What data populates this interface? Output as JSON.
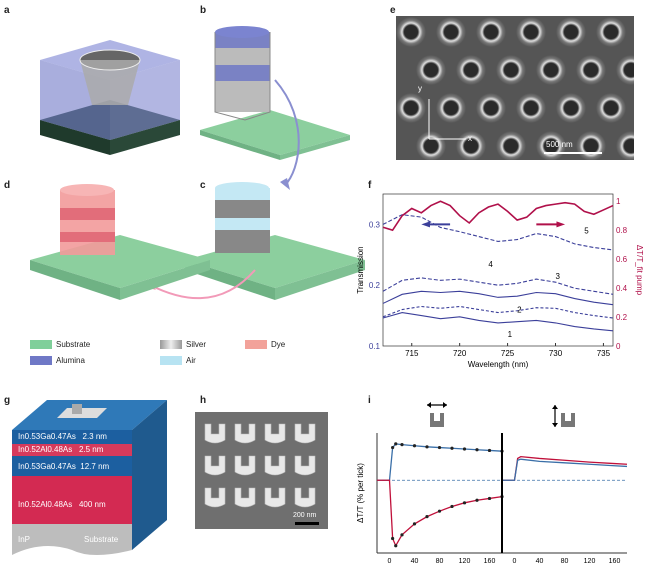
{
  "panels": {
    "a": "a",
    "b": "b",
    "c": "c",
    "d": "d",
    "e": "e",
    "f": "f",
    "g": "g",
    "h": "h",
    "i": "i"
  },
  "legend": [
    {
      "label": "Substrate",
      "color": "#7fcf9a"
    },
    {
      "label": "Silver",
      "color": "#c8c8c8"
    },
    {
      "label": "Dye",
      "color": "#f2a29a"
    },
    {
      "label": "Alumina",
      "color": "#6f78c6"
    },
    {
      "label": "Air",
      "color": "#b7e3f2"
    }
  ],
  "sem_e": {
    "axis_y": "y",
    "axis_x": "x",
    "scale_label": "500 nm"
  },
  "sem_h": {
    "scale_label": "200 nm"
  },
  "stack_g": {
    "layers": [
      {
        "material": "In0.53Ga0.47As",
        "thickness": "2.3 nm"
      },
      {
        "material": "In0.52Al0.48As",
        "thickness": "2.5 nm"
      },
      {
        "material": "In0.53Ga0.47As",
        "thickness": "12.7 nm"
      },
      {
        "material": "In0.52Al0.48As",
        "thickness": "400 nm"
      },
      {
        "material": "InP",
        "thickness": "Substrate"
      }
    ]
  },
  "chart_data": [
    {
      "type": "line",
      "xlabel": "Wavelength (nm)",
      "ylabel": "Transmission",
      "y2label": "ΔT/T_fit pump",
      "xlim": [
        712,
        736
      ],
      "ylim": [
        0.1,
        0.35
      ],
      "y2lim": [
        0,
        1.05
      ],
      "xticks": [
        715,
        720,
        725,
        730,
        735
      ],
      "yticks": [
        0.1,
        0.2,
        0.3
      ],
      "y2ticks": [
        0,
        0.2,
        0.4,
        0.6,
        0.8,
        1
      ],
      "curve_labels": [
        "1",
        "2",
        "3",
        "4",
        "5"
      ],
      "series": [
        {
          "x": [
            712,
            714,
            716,
            718,
            720,
            722,
            724,
            726,
            728,
            730,
            732,
            734,
            736
          ],
          "values": [
            0.146,
            0.155,
            0.15,
            0.145,
            0.148,
            0.142,
            0.138,
            0.14,
            0.142,
            0.138,
            0.132,
            0.128,
            0.125
          ]
        },
        {
          "x": [
            712,
            714,
            716,
            718,
            720,
            722,
            724,
            726,
            728,
            730,
            732,
            734,
            736
          ],
          "values": [
            0.148,
            0.16,
            0.165,
            0.162,
            0.165,
            0.16,
            0.155,
            0.158,
            0.163,
            0.162,
            0.155,
            0.15,
            0.146
          ]
        },
        {
          "x": [
            712,
            714,
            716,
            718,
            720,
            722,
            724,
            726,
            728,
            730,
            732,
            734,
            736
          ],
          "values": [
            0.17,
            0.185,
            0.19,
            0.188,
            0.19,
            0.186,
            0.18,
            0.182,
            0.188,
            0.186,
            0.178,
            0.172,
            0.168
          ]
        },
        {
          "x": [
            712,
            714,
            716,
            718,
            720,
            722,
            724,
            726,
            728,
            730,
            732,
            734,
            736
          ],
          "values": [
            0.19,
            0.208,
            0.212,
            0.208,
            0.21,
            0.205,
            0.2,
            0.203,
            0.21,
            0.205,
            0.195,
            0.19,
            0.185
          ]
        },
        {
          "x": [
            712,
            714,
            716,
            718,
            720,
            722,
            724,
            726,
            728,
            730,
            732,
            734,
            736
          ],
          "values": [
            0.3,
            0.316,
            0.312,
            0.295,
            0.288,
            0.28,
            0.272,
            0.275,
            0.285,
            0.28,
            0.268,
            0.262,
            0.258
          ]
        },
        {
          "x": [
            712,
            713,
            714,
            715,
            716,
            717,
            718,
            719,
            720,
            721,
            722,
            723,
            724,
            725,
            726,
            727,
            728,
            729,
            730,
            731,
            732,
            733,
            734,
            735,
            736
          ],
          "values": [
            0.82,
            0.8,
            0.9,
            0.95,
            0.92,
            0.97,
            1.0,
            0.97,
            0.9,
            0.85,
            0.92,
            0.96,
            0.98,
            0.93,
            0.87,
            0.89,
            0.95,
            0.97,
            0.98,
            0.99,
            0.98,
            0.93,
            0.91,
            0.94,
            0.97
          ]
        }
      ]
    },
    {
      "type": "line",
      "xlabel": "Δt (ps)",
      "ylabel": "ΔT/T (% per tick)",
      "xlim": [
        -20,
        180
      ],
      "xticks": [
        0,
        40,
        80,
        120,
        160
      ],
      "series": [
        {
          "x": [
            -20,
            0,
            5,
            10,
            20,
            40,
            60,
            80,
            100,
            120,
            140,
            160,
            180
          ],
          "values": [
            0,
            0,
            0.9,
            1.0,
            0.98,
            0.95,
            0.92,
            0.9,
            0.88,
            0.86,
            0.84,
            0.82,
            0.8
          ]
        },
        {
          "x": [
            -20,
            0,
            5,
            10,
            20,
            40,
            60,
            80,
            100,
            120,
            140,
            160,
            180
          ],
          "values": [
            0,
            0,
            -1.6,
            -1.8,
            -1.5,
            -1.2,
            -1.0,
            -0.85,
            -0.72,
            -0.62,
            -0.55,
            -0.5,
            -0.45
          ]
        }
      ]
    },
    {
      "type": "line",
      "xlabel": "Δt (ps)",
      "xlim": [
        -20,
        180
      ],
      "xticks": [
        0,
        40,
        80,
        120,
        160
      ],
      "series": [
        {
          "x": [
            -20,
            0,
            5,
            10,
            40,
            80,
            120,
            160,
            180
          ],
          "values": [
            0,
            0,
            0.6,
            0.65,
            0.6,
            0.55,
            0.5,
            0.46,
            0.44
          ]
        },
        {
          "x": [
            -20,
            0,
            5,
            10,
            40,
            80,
            120,
            160,
            180
          ],
          "values": [
            0,
            0,
            0.55,
            0.58,
            0.52,
            0.48,
            0.44,
            0.4,
            0.38
          ]
        }
      ]
    }
  ]
}
